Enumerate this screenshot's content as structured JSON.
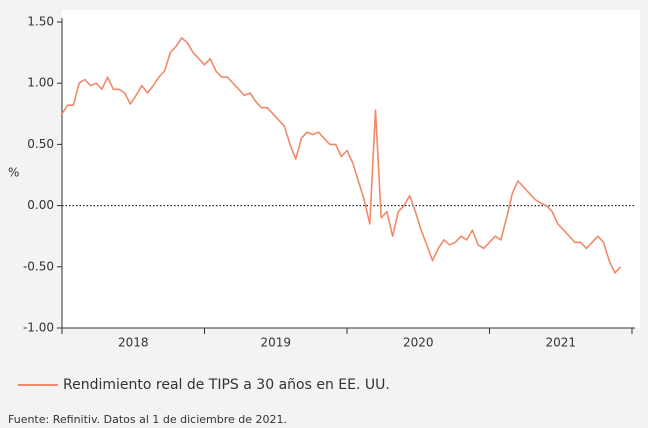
{
  "chart_data": {
    "type": "line",
    "y_label": "%",
    "note": "Fuente: Refinitiv. Datos al 1 de diciembre de 2021.",
    "x": [
      2018.0,
      2018.04,
      2018.08,
      2018.12,
      2018.16,
      2018.2,
      2018.24,
      2018.28,
      2018.32,
      2018.36,
      2018.4,
      2018.44,
      2018.48,
      2018.52,
      2018.56,
      2018.6,
      2018.64,
      2018.68,
      2018.72,
      2018.76,
      2018.8,
      2018.84,
      2018.88,
      2018.92,
      2018.96,
      2019.0,
      2019.04,
      2019.08,
      2019.12,
      2019.16,
      2019.2,
      2019.24,
      2019.28,
      2019.32,
      2019.36,
      2019.4,
      2019.44,
      2019.48,
      2019.52,
      2019.56,
      2019.6,
      2019.64,
      2019.68,
      2019.72,
      2019.76,
      2019.8,
      2019.84,
      2019.88,
      2019.92,
      2019.96,
      2020.0,
      2020.04,
      2020.08,
      2020.12,
      2020.16,
      2020.2,
      2020.24,
      2020.28,
      2020.32,
      2020.36,
      2020.4,
      2020.44,
      2020.48,
      2020.52,
      2020.56,
      2020.6,
      2020.64,
      2020.68,
      2020.72,
      2020.76,
      2020.8,
      2020.84,
      2020.88,
      2020.92,
      2020.96,
      2021.0,
      2021.04,
      2021.08,
      2021.12,
      2021.16,
      2021.2,
      2021.24,
      2021.28,
      2021.32,
      2021.36,
      2021.4,
      2021.44,
      2021.48,
      2021.52,
      2021.56,
      2021.6,
      2021.64,
      2021.68,
      2021.72,
      2021.76,
      2021.8,
      2021.84,
      2021.88,
      2021.92
    ],
    "series": [
      {
        "name": "Rendimiento real de TIPS a 30 años en EE. UU.",
        "color": "#f08a6a",
        "values": [
          0.75,
          0.82,
          0.82,
          1.0,
          1.03,
          0.98,
          1.0,
          0.95,
          1.05,
          0.95,
          0.95,
          0.92,
          0.83,
          0.9,
          0.98,
          0.92,
          0.98,
          1.05,
          1.1,
          1.25,
          1.3,
          1.37,
          1.33,
          1.25,
          1.2,
          1.15,
          1.2,
          1.1,
          1.05,
          1.05,
          1.0,
          0.95,
          0.9,
          0.92,
          0.85,
          0.8,
          0.8,
          0.75,
          0.7,
          0.65,
          0.5,
          0.38,
          0.55,
          0.6,
          0.58,
          0.6,
          0.55,
          0.5,
          0.5,
          0.4,
          0.45,
          0.35,
          0.2,
          0.05,
          -0.15,
          0.78,
          -0.1,
          -0.05,
          -0.25,
          -0.05,
          0.0,
          0.08,
          -0.05,
          -0.2,
          -0.32,
          -0.45,
          -0.35,
          -0.28,
          -0.32,
          -0.3,
          -0.25,
          -0.28,
          -0.2,
          -0.32,
          -0.35,
          -0.3,
          -0.25,
          -0.28,
          -0.1,
          0.1,
          0.2,
          0.15,
          0.1,
          0.05,
          0.02,
          0.0,
          -0.05,
          -0.15,
          -0.2,
          -0.25,
          -0.3,
          -0.3,
          -0.35,
          -0.3,
          -0.25,
          -0.3,
          -0.45,
          -0.55,
          -0.5
        ]
      }
    ],
    "xlim": [
      2018,
      2022
    ],
    "xticks": [
      2018,
      2019,
      2020,
      2021,
      2022
    ],
    "year_labels": [
      "2018",
      "2019",
      "2020",
      "2021"
    ],
    "ylim": [
      -1,
      1.5
    ],
    "yticks": [
      {
        "value": 1.5,
        "label": "1.50"
      },
      {
        "value": 1,
        "label": "1.00"
      },
      {
        "value": 0.5,
        "label": "0.50"
      },
      {
        "value": 0,
        "label": "0.00"
      },
      {
        "value": -0.5,
        "label": "-0.50"
      },
      {
        "value": -1,
        "label": "-1.00"
      }
    ]
  }
}
